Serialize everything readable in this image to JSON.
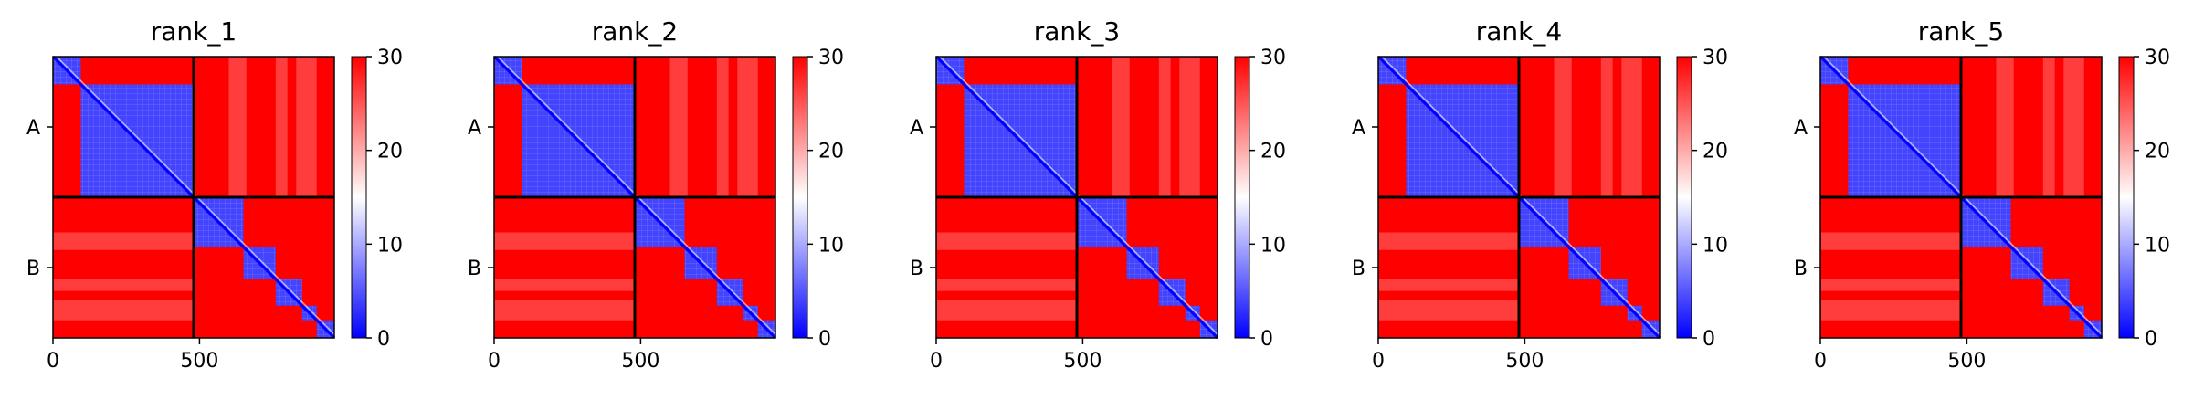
{
  "figure": {
    "panels": [
      "rank_1",
      "rank_2",
      "rank_3",
      "rank_4",
      "rank_5"
    ]
  },
  "chart_data": [
    {
      "type": "heatmap",
      "title": "rank_1",
      "xlabel": "",
      "ylabel": "",
      "xlim": [
        0,
        960
      ],
      "ylim": [
        960,
        0
      ],
      "x_ticks": [
        0,
        500
      ],
      "chain_labels": [
        "A",
        "B"
      ],
      "chain_boundaries": [
        0,
        480,
        960
      ],
      "colorbar": {
        "min": 0,
        "max": 30,
        "ticks": [
          0,
          10,
          20,
          30
        ],
        "colormap": [
          "#0000ff",
          "#ffffff",
          "#ff0000"
        ]
      },
      "intra_domains": [
        [
          0,
          95
        ],
        [
          95,
          480
        ],
        [
          480,
          650
        ],
        [
          650,
          760
        ],
        [
          760,
          850
        ],
        [
          850,
          900
        ],
        [
          900,
          960
        ]
      ],
      "values_summary": {
        "intra_domain_pae": 4,
        "inter_domain_pae": 30,
        "diagonal_pae": 0
      }
    },
    {
      "type": "heatmap",
      "title": "rank_2",
      "xlabel": "",
      "ylabel": "",
      "xlim": [
        0,
        960
      ],
      "ylim": [
        960,
        0
      ],
      "x_ticks": [
        0,
        500
      ],
      "chain_labels": [
        "A",
        "B"
      ],
      "chain_boundaries": [
        0,
        480,
        960
      ],
      "colorbar": {
        "min": 0,
        "max": 30,
        "ticks": [
          0,
          10,
          20,
          30
        ],
        "colormap": [
          "#0000ff",
          "#ffffff",
          "#ff0000"
        ]
      },
      "intra_domains": [
        [
          0,
          95
        ],
        [
          95,
          480
        ],
        [
          480,
          650
        ],
        [
          650,
          760
        ],
        [
          760,
          850
        ],
        [
          850,
          900
        ],
        [
          900,
          960
        ]
      ],
      "values_summary": {
        "intra_domain_pae": 4,
        "inter_domain_pae": 30,
        "diagonal_pae": 0
      }
    },
    {
      "type": "heatmap",
      "title": "rank_3",
      "xlabel": "",
      "ylabel": "",
      "xlim": [
        0,
        960
      ],
      "ylim": [
        960,
        0
      ],
      "x_ticks": [
        0,
        500
      ],
      "chain_labels": [
        "A",
        "B"
      ],
      "chain_boundaries": [
        0,
        480,
        960
      ],
      "colorbar": {
        "min": 0,
        "max": 30,
        "ticks": [
          0,
          10,
          20,
          30
        ],
        "colormap": [
          "#0000ff",
          "#ffffff",
          "#ff0000"
        ]
      },
      "intra_domains": [
        [
          0,
          95
        ],
        [
          95,
          480
        ],
        [
          480,
          650
        ],
        [
          650,
          760
        ],
        [
          760,
          850
        ],
        [
          850,
          900
        ],
        [
          900,
          960
        ]
      ],
      "values_summary": {
        "intra_domain_pae": 4,
        "inter_domain_pae": 30,
        "diagonal_pae": 0
      }
    },
    {
      "type": "heatmap",
      "title": "rank_4",
      "xlabel": "",
      "ylabel": "",
      "xlim": [
        0,
        960
      ],
      "ylim": [
        960,
        0
      ],
      "x_ticks": [
        0,
        500
      ],
      "chain_labels": [
        "A",
        "B"
      ],
      "chain_boundaries": [
        0,
        480,
        960
      ],
      "colorbar": {
        "min": 0,
        "max": 30,
        "ticks": [
          0,
          10,
          20,
          30
        ],
        "colormap": [
          "#0000ff",
          "#ffffff",
          "#ff0000"
        ]
      },
      "intra_domains": [
        [
          0,
          95
        ],
        [
          95,
          480
        ],
        [
          480,
          650
        ],
        [
          650,
          760
        ],
        [
          760,
          850
        ],
        [
          850,
          900
        ],
        [
          900,
          960
        ]
      ],
      "values_summary": {
        "intra_domain_pae": 4,
        "inter_domain_pae": 30,
        "diagonal_pae": 0
      }
    },
    {
      "type": "heatmap",
      "title": "rank_5",
      "xlabel": "",
      "ylabel": "",
      "xlim": [
        0,
        960
      ],
      "ylim": [
        960,
        0
      ],
      "x_ticks": [
        0,
        500
      ],
      "chain_labels": [
        "A",
        "B"
      ],
      "chain_boundaries": [
        0,
        480,
        960
      ],
      "colorbar": {
        "min": 0,
        "max": 30,
        "ticks": [
          0,
          10,
          20,
          30
        ],
        "colormap": [
          "#0000ff",
          "#ffffff",
          "#ff0000"
        ]
      },
      "intra_domains": [
        [
          0,
          95
        ],
        [
          95,
          480
        ],
        [
          480,
          650
        ],
        [
          650,
          760
        ],
        [
          760,
          850
        ],
        [
          850,
          900
        ],
        [
          900,
          960
        ]
      ],
      "values_summary": {
        "intra_domain_pae": 4,
        "inter_domain_pae": 30,
        "diagonal_pae": 0
      }
    }
  ]
}
